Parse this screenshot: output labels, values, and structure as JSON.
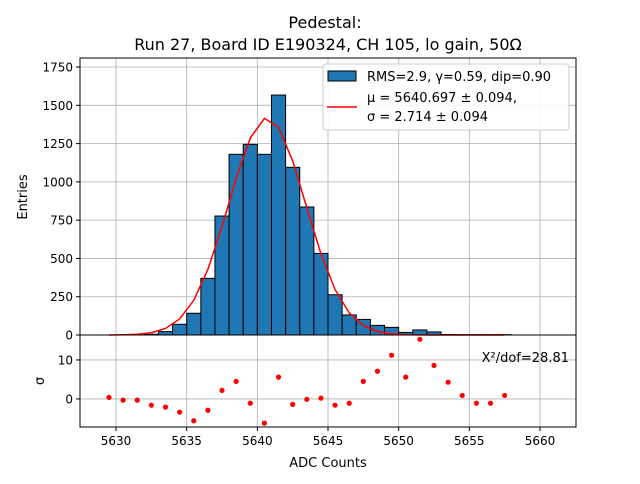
{
  "chart_data": [
    {
      "type": "bar",
      "panel": "histogram",
      "title_line1": "Pedestal:",
      "title_line2": "Run 27, Board ID E190324, CH 105, lo gain, 50Ω",
      "xlabel": "ADC Counts",
      "ylabel": "Entries",
      "xlim": [
        5627.45,
        5662.55
      ],
      "ylim": [
        0,
        1809
      ],
      "grid": true,
      "bin_edges_start": 5629,
      "bin_width": 1,
      "counts": [
        0,
        0,
        0,
        5,
        22,
        70,
        142,
        370,
        777,
        1180,
        1245,
        1180,
        1567,
        1095,
        836,
        533,
        263,
        131,
        102,
        63,
        50,
        17,
        33,
        20,
        3,
        2,
        2,
        2,
        2
      ],
      "bar_color": "#1f77b4",
      "fit": {
        "type": "gaussian",
        "amplitude": 1418,
        "mu": 5640.697,
        "sigma": 2.714,
        "x_from": 5629.5,
        "x_to": 5657.5,
        "color": "#ff0000"
      },
      "xticks": [
        5630,
        5635,
        5640,
        5645,
        5650,
        5655,
        5660
      ],
      "yticks": [
        0,
        250,
        500,
        750,
        1000,
        1250,
        1500,
        1750
      ],
      "ytick_labels": [
        "0",
        "250",
        "500",
        "750",
        "1000",
        "1250",
        "1500",
        "1750"
      ],
      "legend_position": "top-right",
      "legend": {
        "hist_label": "RMS=2.9, γ=0.59, dip=0.90",
        "fit_label_line1": "μ = 5640.697 ± 0.094,",
        "fit_label_line2": "σ = 2.714 ± 0.094"
      }
    },
    {
      "type": "scatter",
      "panel": "residuals",
      "ylabel": "σ",
      "xlabel": "ADC Counts",
      "ylim": [
        -7.2,
        16.4
      ],
      "yticks": [
        0,
        10
      ],
      "ytick_labels": [
        "0",
        "10"
      ],
      "xtick_labels": [
        "5630",
        "5635",
        "5640",
        "5645",
        "5650",
        "5655",
        "5660"
      ],
      "annotation": "X²/dof=28.81",
      "color": "#ff0000",
      "x": [
        5629.5,
        5630.5,
        5631.5,
        5632.5,
        5633.5,
        5634.5,
        5635.5,
        5636.5,
        5637.5,
        5638.5,
        5639.5,
        5640.5,
        5641.5,
        5642.5,
        5643.5,
        5644.5,
        5645.5,
        5646.5,
        5647.5,
        5648.5,
        5649.5,
        5650.5,
        5651.5,
        5652.5,
        5653.5,
        5654.5,
        5655.5,
        5656.5,
        5657.5
      ],
      "y": [
        0.4,
        -0.3,
        -0.3,
        -1.6,
        -2.1,
        -3.4,
        -5.6,
        -2.9,
        2.2,
        4.5,
        -1.1,
        -6.2,
        5.6,
        -1.4,
        -0.1,
        0.2,
        -1.6,
        -1.1,
        4.5,
        7.1,
        11.2,
        5.6,
        15.3,
        8.6,
        4.3,
        0.9,
        -1.1,
        -1.1,
        0.9
      ]
    }
  ]
}
